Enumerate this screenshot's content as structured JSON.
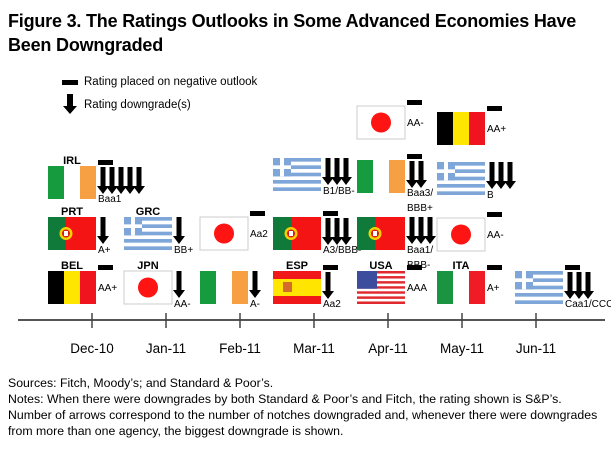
{
  "title": "Figure 3. The Ratings Outlooks in Some Advanced Economies Have Been Downgraded",
  "legend": {
    "outlook_label": "Rating placed on negative outlook",
    "downgrade_label": "Rating downgrade(s)"
  },
  "chart_data": {
    "type": "timeline",
    "title": "Figure 3. The Ratings Outlooks in Some Advanced Economies Have Been Downgraded",
    "xlabel": "",
    "ylabel": "",
    "categories": [
      "Dec-10",
      "Jan-11",
      "Feb-11",
      "Mar-11",
      "Apr-11",
      "May-11",
      "Jun-11"
    ],
    "legend": [
      "Rating placed on negative outlook",
      "Rating downgrade(s)"
    ],
    "events": [
      {
        "month": "Dec-10",
        "country": "IRL",
        "flag": "IRL",
        "label": "IRL",
        "negative_outlook": true,
        "downgrades": 5,
        "rating": "Baa1"
      },
      {
        "month": "Dec-10",
        "country": "PRT",
        "flag": "PRT",
        "label": "PRT",
        "negative_outlook": false,
        "downgrades": 1,
        "rating": "A+"
      },
      {
        "month": "Dec-10",
        "country": "BEL",
        "flag": "BEL",
        "label": "BEL",
        "negative_outlook": true,
        "downgrades": 0,
        "rating": "AA+"
      },
      {
        "month": "Jan-11",
        "country": "GRC",
        "flag": "GRC",
        "label": "GRC",
        "negative_outlook": false,
        "downgrades": 1,
        "rating": "BB+"
      },
      {
        "month": "Jan-11",
        "country": "JPN",
        "flag": "JPN",
        "label": "JPN",
        "negative_outlook": false,
        "downgrades": 1,
        "rating": "AA-"
      },
      {
        "month": "Feb-11",
        "country": "JPN",
        "flag": "JPN",
        "label": "",
        "negative_outlook": true,
        "downgrades": 0,
        "rating": "Aa2"
      },
      {
        "month": "Feb-11",
        "country": "IRL",
        "flag": "IRL",
        "label": "",
        "negative_outlook": false,
        "downgrades": 1,
        "rating": "A-"
      },
      {
        "month": "Mar-11",
        "country": "GRC",
        "flag": "GRC",
        "label": "",
        "negative_outlook": false,
        "downgrades": 3,
        "rating": "B1/BB-"
      },
      {
        "month": "Mar-11",
        "country": "PRT",
        "flag": "PRT",
        "label": "",
        "negative_outlook": true,
        "downgrades": 3,
        "rating": "A3/BBB-"
      },
      {
        "month": "Mar-11",
        "country": "ESP",
        "flag": "ESP",
        "label": "ESP",
        "negative_outlook": true,
        "downgrades": 1,
        "rating": "Aa2"
      },
      {
        "month": "Apr-11",
        "country": "JPN",
        "flag": "JPN",
        "label": "",
        "negative_outlook": true,
        "downgrades": 0,
        "rating": "AA-"
      },
      {
        "month": "Apr-11",
        "country": "IRL",
        "flag": "IRL",
        "label": "",
        "negative_outlook": true,
        "downgrades": 2,
        "rating": "Baa3/ BBB+"
      },
      {
        "month": "Apr-11",
        "country": "PRT",
        "flag": "PRT",
        "label": "",
        "negative_outlook": false,
        "downgrades": 3,
        "rating": "Baa1/ BBB-"
      },
      {
        "month": "Apr-11",
        "country": "USA",
        "flag": "USA",
        "label": "USA",
        "negative_outlook": true,
        "downgrades": 0,
        "rating": "AAA"
      },
      {
        "month": "May-11",
        "country": "BEL",
        "flag": "BEL",
        "label": "",
        "negative_outlook": true,
        "downgrades": 0,
        "rating": "AA+"
      },
      {
        "month": "May-11",
        "country": "GRC",
        "flag": "GRC",
        "label": "",
        "negative_outlook": false,
        "downgrades": 3,
        "rating": "B"
      },
      {
        "month": "May-11",
        "country": "JPN",
        "flag": "JPN",
        "label": "",
        "negative_outlook": true,
        "downgrades": 0,
        "rating": "AA-"
      },
      {
        "month": "May-11",
        "country": "ITA",
        "flag": "ITA",
        "label": "ITA",
        "negative_outlook": true,
        "downgrades": 0,
        "rating": "A+"
      },
      {
        "month": "Jun-11",
        "country": "GRC",
        "flag": "GRC",
        "label": "",
        "negative_outlook": true,
        "downgrades": 3,
        "rating": "Caa1/CCC"
      }
    ]
  },
  "notes": {
    "sources": "Sources: Fitch, Moody’s; and Standard & Poor’s.",
    "notes": "Notes: When there were downgrades by both Standard & Poor’s and Fitch, the rating shown is S&P’s. Number of arrows correspond to the number of notches downgraded and, whenever there were downgrades from more than one agency, the biggest downgrade is shown."
  }
}
